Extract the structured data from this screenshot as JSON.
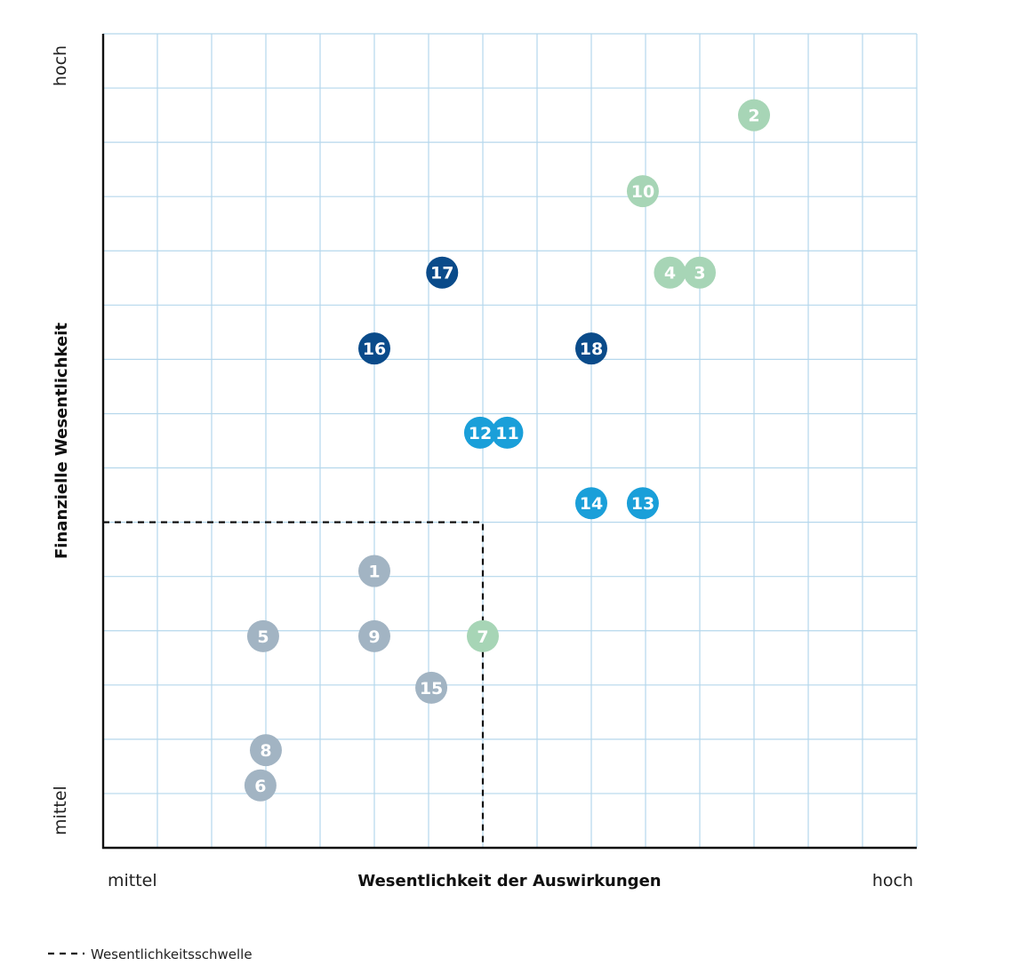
{
  "chart_data": {
    "type": "scatter",
    "title": "",
    "xlabel": "Wesentlichkeit der Auswirkungen",
    "ylabel": "Finanzielle Wesentlichkeit",
    "x_low_label": "mittel",
    "x_high_label": "hoch",
    "y_low_label": "mittel",
    "y_high_label": "hoch",
    "xlim": [
      0,
      15
    ],
    "ylim": [
      0,
      15
    ],
    "grid": true,
    "threshold": {
      "x": 7,
      "y": 6
    },
    "legend": {
      "threshold_label": "Wesentlichkeitsschwelle",
      "placement": "bottom-left"
    },
    "colors": {
      "green": "#a7d5b6",
      "light_blue": "#1a9fd9",
      "dark_blue": "#0a4b8a",
      "grey": "#a2b4c3",
      "grid": "#b5d7ec",
      "axis": "#111111"
    },
    "points": [
      {
        "label": "1",
        "x": 5.0,
        "y": 5.1,
        "color": "grey"
      },
      {
        "label": "2",
        "x": 12.0,
        "y": 13.5,
        "color": "green"
      },
      {
        "label": "3",
        "x": 11.0,
        "y": 10.6,
        "color": "green"
      },
      {
        "label": "4",
        "x": 10.45,
        "y": 10.6,
        "color": "green"
      },
      {
        "label": "5",
        "x": 2.95,
        "y": 3.9,
        "color": "grey"
      },
      {
        "label": "6",
        "x": 2.9,
        "y": 1.15,
        "color": "grey"
      },
      {
        "label": "7",
        "x": 7.0,
        "y": 3.9,
        "color": "green"
      },
      {
        "label": "8",
        "x": 3.0,
        "y": 1.8,
        "color": "grey"
      },
      {
        "label": "9",
        "x": 5.0,
        "y": 3.9,
        "color": "grey"
      },
      {
        "label": "10",
        "x": 9.95,
        "y": 12.1,
        "color": "green"
      },
      {
        "label": "11",
        "x": 7.45,
        "y": 7.65,
        "color": "light_blue"
      },
      {
        "label": "12",
        "x": 6.95,
        "y": 7.65,
        "color": "light_blue"
      },
      {
        "label": "13",
        "x": 9.95,
        "y": 6.35,
        "color": "light_blue"
      },
      {
        "label": "14",
        "x": 9.0,
        "y": 6.35,
        "color": "light_blue"
      },
      {
        "label": "15",
        "x": 6.05,
        "y": 2.95,
        "color": "grey"
      },
      {
        "label": "16",
        "x": 5.0,
        "y": 9.2,
        "color": "dark_blue"
      },
      {
        "label": "17",
        "x": 6.25,
        "y": 10.6,
        "color": "dark_blue"
      },
      {
        "label": "18",
        "x": 9.0,
        "y": 9.2,
        "color": "dark_blue"
      }
    ]
  }
}
